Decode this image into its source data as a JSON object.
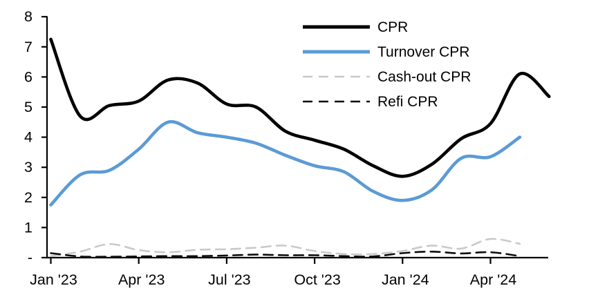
{
  "chart_data": {
    "type": "line",
    "title": "",
    "xlabel": "",
    "ylabel": "",
    "ylim": [
      0,
      8
    ],
    "grid": false,
    "legend_position": "top-right-inside",
    "y_tick_labels": [
      "-",
      "1",
      "2",
      "3",
      "4",
      "5",
      "6",
      "7",
      "8"
    ],
    "x_tick_labels": [
      "Jan '23",
      "Apr '23",
      "Jul '23",
      "Oct '23",
      "Jan '24",
      "Apr '24"
    ],
    "x_tick_month_index": [
      0,
      3,
      6,
      9,
      12,
      15
    ],
    "x_months": [
      "Jan '23",
      "Feb '23",
      "Mar '23",
      "Apr '23",
      "May '23",
      "Jun '23",
      "Jul '23",
      "Aug '23",
      "Sep '23",
      "Oct '23",
      "Nov '23",
      "Dec '23",
      "Jan '24",
      "Feb '24",
      "Mar '24",
      "Apr '24",
      "May '24",
      "Jun '24"
    ],
    "series": [
      {
        "name": "CPR",
        "color": "#000000",
        "style": "solid",
        "line_width": 4.6,
        "values": [
          7.25,
          4.7,
          5.05,
          5.2,
          5.9,
          5.8,
          5.1,
          5.0,
          4.2,
          3.9,
          3.6,
          3.05,
          2.7,
          3.1,
          3.95,
          4.45,
          6.1,
          5.35
        ]
      },
      {
        "name": "Turnover CPR",
        "color": "#5B9BD5",
        "style": "solid",
        "line_width": 4.6,
        "values": [
          1.75,
          2.75,
          2.9,
          3.6,
          4.5,
          4.15,
          4.0,
          3.8,
          3.4,
          3.05,
          2.85,
          2.2,
          1.9,
          2.25,
          3.3,
          3.35,
          4.0
        ]
      },
      {
        "name": "Cash-out CPR",
        "color": "#C9C9C9",
        "style": "dashed",
        "line_width": 2.6,
        "values": [
          0.05,
          0.2,
          0.45,
          0.25,
          0.18,
          0.26,
          0.28,
          0.33,
          0.4,
          0.22,
          0.12,
          0.12,
          0.22,
          0.4,
          0.3,
          0.62,
          0.46
        ]
      },
      {
        "name": "Refi CPR",
        "color": "#0d0d0d",
        "style": "dashed",
        "line_width": 2.6,
        "values": [
          0.15,
          0.04,
          0.03,
          0.04,
          0.05,
          0.05,
          0.07,
          0.1,
          0.08,
          0.08,
          0.05,
          0.04,
          0.15,
          0.2,
          0.14,
          0.18,
          0.05
        ]
      }
    ]
  }
}
